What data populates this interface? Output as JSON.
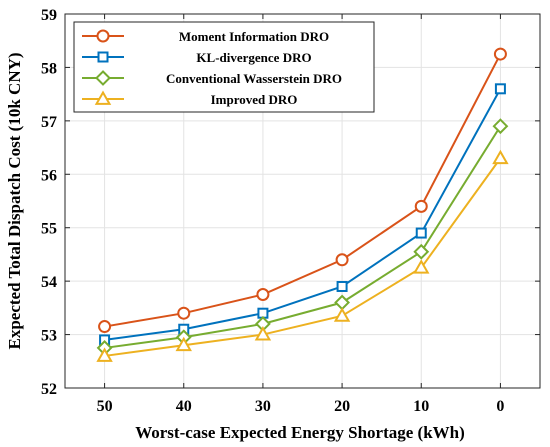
{
  "chart_data": {
    "type": "line",
    "xlabel": "Worst-case Expected Energy Shortage (kWh)",
    "ylabel": "Expected Total Dispatch Cost (10k CNY)",
    "x": [
      50,
      40,
      30,
      20,
      10,
      0
    ],
    "x_tick_labels": [
      "50",
      "40",
      "30",
      "20",
      "10",
      "0"
    ],
    "x_reversed": true,
    "ylim": [
      52,
      59
    ],
    "y_ticks": [
      52,
      53,
      54,
      55,
      56,
      57,
      58,
      59
    ],
    "grid": true,
    "legend_position": "top-left",
    "series": [
      {
        "name": "Moment Information DRO",
        "color": "#D95319",
        "marker": "circle",
        "values": [
          53.15,
          53.4,
          53.75,
          54.4,
          55.4,
          58.25
        ]
      },
      {
        "name": "KL-divergence DRO",
        "color": "#0072BD",
        "marker": "square",
        "values": [
          52.9,
          53.1,
          53.4,
          53.9,
          54.9,
          57.6
        ]
      },
      {
        "name": "Conventional Wasserstein DRO",
        "color": "#77AC30",
        "marker": "diamond",
        "values": [
          52.75,
          52.95,
          53.2,
          53.6,
          54.55,
          56.9
        ]
      },
      {
        "name": "Improved DRO",
        "color": "#EDB120",
        "marker": "triangle",
        "values": [
          52.6,
          52.8,
          53.0,
          53.35,
          54.25,
          56.3
        ]
      }
    ]
  }
}
